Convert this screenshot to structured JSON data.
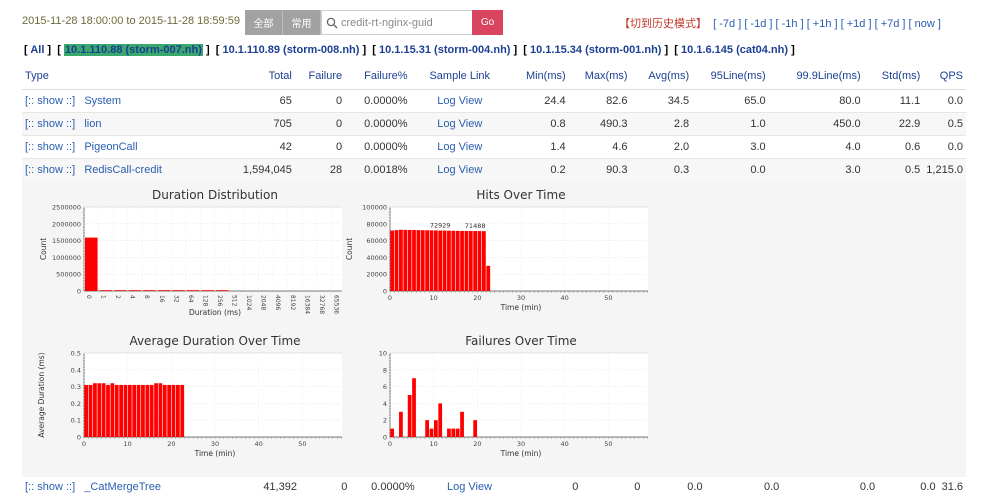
{
  "header": {
    "time_range": "2015-11-28 18:00:00 to 2015-11-28 18:59:59",
    "btn_all": "全部",
    "btn_common": "常用",
    "search_value": "credit-rt-nginx-guid",
    "go_label": "Go",
    "history_mode": "【切到历史模式】",
    "nav": [
      "[ -7d ]",
      "[ -1d ]",
      "[ -1h ]",
      "[ +1h ]",
      "[ +1d ]",
      "[ +7d ]",
      "[ now ]"
    ]
  },
  "hosts": {
    "all": "All",
    "items": [
      {
        "label": "10.1.110.88 (storm-007.nh)",
        "active": true
      },
      {
        "label": "10.1.110.89 (storm-008.nh)",
        "active": false
      },
      {
        "label": "10.1.15.31 (storm-004.nh)",
        "active": false
      },
      {
        "label": "10.1.15.34 (storm-001.nh)",
        "active": false
      },
      {
        "label": "10.1.6.145 (cat04.nh)",
        "active": false
      }
    ]
  },
  "table": {
    "headers": [
      "Type",
      "Total",
      "Failure",
      "Failure%",
      "Sample Link",
      "Min(ms)",
      "Max(ms)",
      "Avg(ms)",
      "95Line(ms)",
      "99.9Line(ms)",
      "Std(ms)",
      "QPS"
    ],
    "rows": [
      {
        "show": "[:: show ::]",
        "type": "System",
        "total": "65",
        "failure": "0",
        "failure_pct": "0.0000%",
        "sample": "Log View",
        "min": "24.4",
        "max": "82.6",
        "avg": "34.5",
        "p95": "65.0",
        "p999": "80.0",
        "std": "11.1",
        "qps": "0.0"
      },
      {
        "show": "[:: show ::]",
        "type": "lion",
        "total": "705",
        "failure": "0",
        "failure_pct": "0.0000%",
        "sample": "Log View",
        "min": "0.8",
        "max": "490.3",
        "avg": "2.8",
        "p95": "1.0",
        "p999": "450.0",
        "std": "22.9",
        "qps": "0.5"
      },
      {
        "show": "[:: show ::]",
        "type": "PigeonCall",
        "total": "42",
        "failure": "0",
        "failure_pct": "0.0000%",
        "sample": "Log View",
        "min": "1.4",
        "max": "4.6",
        "avg": "2.0",
        "p95": "3.0",
        "p999": "4.0",
        "std": "0.6",
        "qps": "0.0"
      },
      {
        "show": "[:: show ::]",
        "type": "RedisCall-credit",
        "total": "1,594,045",
        "failure": "28",
        "failure_pct": "0.0018%",
        "sample": "Log View",
        "min": "0.2",
        "max": "90.3",
        "avg": "0.3",
        "p95": "0.0",
        "p999": "3.0",
        "std": "0.5",
        "qps": "1,215.0"
      }
    ],
    "bottom_row": {
      "show": "[:: show ::]",
      "type": "_CatMergeTree",
      "total": "41,392",
      "failure": "0",
      "failure_pct": "0.0000%",
      "sample": "Log View",
      "min": "0",
      "max": "0",
      "avg": "0.0",
      "p95": "0.0",
      "p999": "0.0",
      "std": "0.0",
      "qps": "31.6"
    }
  },
  "chart_data": [
    {
      "type": "bar",
      "title": "Duration Distribution",
      "xlabel": "Duration (ms)",
      "ylabel": "Count",
      "ylim": [
        0,
        2500000
      ],
      "yticks": [
        "0",
        "500000",
        "1000000",
        "1500000",
        "2000000",
        "2500000"
      ],
      "categories": [
        "0",
        "1",
        "2",
        "4",
        "8",
        "16",
        "32",
        "64",
        "128",
        "256",
        "512",
        "1024",
        "2048",
        "4096",
        "8192",
        "16384",
        "32768",
        "65536"
      ],
      "values": [
        1590000,
        2000,
        500,
        300,
        200,
        100,
        100,
        50,
        30,
        10,
        0,
        0,
        0,
        0,
        0,
        0,
        0,
        0
      ],
      "color": "#ff0000",
      "grid": true
    },
    {
      "type": "bar",
      "title": "Hits Over Time",
      "xlabel": "Time (min)",
      "ylabel": "Count",
      "ylim": [
        0,
        100000
      ],
      "yticks": [
        "0",
        "20000",
        "40000",
        "60000",
        "80000",
        "100000"
      ],
      "xticks": [
        "0",
        "10",
        "20",
        "30",
        "40",
        "50",
        "60"
      ],
      "xmax": 60,
      "values": [
        72000,
        72500,
        72929,
        72800,
        72700,
        72600,
        72500,
        72400,
        72300,
        72200,
        72100,
        72000,
        71900,
        71800,
        71700,
        71600,
        71500,
        71500,
        71488,
        71400,
        71300,
        71200,
        30000
      ],
      "annotations": [
        {
          "x": 11,
          "label": "72929"
        },
        {
          "x": 19,
          "label": "71488"
        }
      ],
      "color": "#ff0000",
      "grid": true
    },
    {
      "type": "bar",
      "title": "Average Duration Over Time",
      "xlabel": "Time (min)",
      "ylabel": "Average Duration (ms)",
      "ylim": [
        0,
        0.5
      ],
      "yticks": [
        "0",
        "0.1",
        "0.2",
        "0.3",
        "0.4",
        "0.5"
      ],
      "xticks": [
        "0",
        "10",
        "20",
        "30",
        "40",
        "50",
        "60"
      ],
      "xmax": 60,
      "values": [
        0.31,
        0.31,
        0.32,
        0.32,
        0.32,
        0.31,
        0.32,
        0.31,
        0.31,
        0.31,
        0.31,
        0.31,
        0.31,
        0.31,
        0.31,
        0.31,
        0.32,
        0.32,
        0.31,
        0.31,
        0.31,
        0.31,
        0.31
      ],
      "color": "#ff0000",
      "grid": true
    },
    {
      "type": "bar",
      "title": "Failures Over Time",
      "xlabel": "Time (min)",
      "ylabel": "",
      "ylim": [
        0,
        10
      ],
      "yticks": [
        "0",
        "2",
        "4",
        "6",
        "8",
        "10"
      ],
      "xticks": [
        "0",
        "10",
        "20",
        "30",
        "40",
        "50",
        "60"
      ],
      "xmax": 60,
      "values": [
        1,
        0,
        3,
        0,
        5,
        7,
        0,
        0,
        2,
        1,
        2,
        4,
        0,
        1,
        1,
        1,
        3,
        0,
        0,
        2,
        0,
        0,
        0
      ],
      "color": "#ff0000",
      "grid": true
    }
  ]
}
